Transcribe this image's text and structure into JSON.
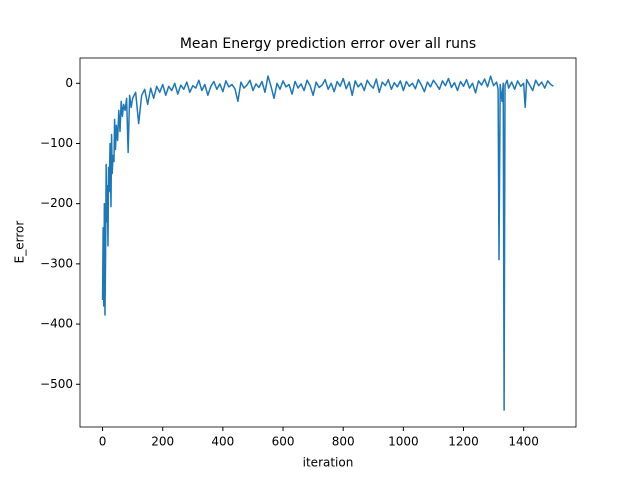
{
  "chart_data": {
    "type": "line",
    "title": "Mean Energy prediction error over all runs",
    "x_label": "iteration",
    "y_label": "E_error",
    "color": "#1f77b4",
    "x": [
      0,
      2,
      4,
      6,
      8,
      10,
      12,
      14,
      16,
      18,
      20,
      22,
      25,
      28,
      30,
      32,
      35,
      38,
      40,
      43,
      46,
      50,
      54,
      58,
      62,
      66,
      70,
      75,
      80,
      85,
      90,
      95,
      100,
      110,
      120,
      130,
      140,
      150,
      160,
      170,
      180,
      190,
      200,
      210,
      220,
      230,
      240,
      250,
      260,
      270,
      280,
      290,
      300,
      310,
      320,
      330,
      340,
      350,
      360,
      370,
      380,
      390,
      400,
      410,
      420,
      430,
      440,
      450,
      460,
      470,
      480,
      490,
      500,
      510,
      520,
      530,
      540,
      550,
      560,
      570,
      580,
      590,
      600,
      610,
      620,
      630,
      640,
      650,
      660,
      670,
      680,
      690,
      700,
      710,
      720,
      730,
      740,
      750,
      760,
      770,
      780,
      790,
      800,
      810,
      820,
      830,
      840,
      850,
      860,
      870,
      880,
      890,
      900,
      910,
      920,
      930,
      940,
      950,
      960,
      970,
      980,
      990,
      1000,
      1010,
      1020,
      1030,
      1040,
      1050,
      1060,
      1070,
      1080,
      1090,
      1100,
      1110,
      1120,
      1130,
      1140,
      1150,
      1160,
      1170,
      1180,
      1190,
      1200,
      1210,
      1220,
      1230,
      1240,
      1250,
      1260,
      1270,
      1280,
      1290,
      1300,
      1310,
      1315,
      1318,
      1322,
      1328,
      1332,
      1335,
      1338,
      1345,
      1350,
      1360,
      1370,
      1380,
      1390,
      1400,
      1405,
      1410,
      1420,
      1430,
      1440,
      1450,
      1460,
      1470,
      1480,
      1490,
      1499
    ],
    "values": [
      -360,
      -240,
      -370,
      -200,
      -385,
      -290,
      -135,
      -230,
      -170,
      -270,
      -140,
      -180,
      -100,
      -205,
      -85,
      -150,
      -120,
      -130,
      -60,
      -110,
      -70,
      -95,
      -45,
      -80,
      -30,
      -55,
      -35,
      -45,
      -25,
      -115,
      -20,
      -40,
      -25,
      -15,
      -67,
      -20,
      -10,
      -35,
      -8,
      -25,
      -5,
      -15,
      -2,
      -20,
      -5,
      -12,
      0,
      -18,
      -3,
      -10,
      2,
      -15,
      -4,
      -8,
      5,
      -12,
      -2,
      -20,
      -5,
      3,
      -10,
      -1,
      -14,
      4,
      -6,
      -2,
      -9,
      -30,
      2,
      -8,
      -3,
      5,
      -12,
      -1,
      -7,
      3,
      -15,
      12,
      -5,
      -25,
      0,
      -10,
      4,
      -6,
      -2,
      -18,
      3,
      -8,
      -1,
      -12,
      5,
      -4,
      -20,
      2,
      -7,
      -3,
      6,
      -10,
      0,
      -14,
      3,
      -5,
      8,
      -9,
      2,
      -20,
      4,
      -6,
      0,
      -12,
      5,
      -3,
      -8,
      7,
      -15,
      2,
      -4,
      6,
      -10,
      1,
      -6,
      4,
      -12,
      3,
      -5,
      0,
      -9,
      6,
      -3,
      -14,
      2,
      -6,
      5,
      -2,
      -10,
      4,
      -4,
      8,
      -7,
      1,
      -12,
      3,
      -5,
      6,
      -8,
      0,
      -16,
      4,
      -3,
      7,
      -6,
      12,
      -4,
      2,
      -10,
      -293,
      -2,
      -30,
      0,
      -543,
      -3,
      5,
      -8,
      2,
      -10,
      4,
      -5,
      0,
      -40,
      6,
      -3,
      -12,
      5,
      -4,
      2,
      -8,
      4,
      -2,
      -5
    ],
    "xlim": [
      -75,
      1574
    ],
    "ylim": [
      -571,
      42
    ],
    "xticks": [
      0,
      200,
      400,
      600,
      800,
      1000,
      1200,
      1400
    ],
    "yticks": [
      {
        "value": -500,
        "label": "−500"
      },
      {
        "value": -400,
        "label": "−400"
      },
      {
        "value": -300,
        "label": "−300"
      },
      {
        "value": -200,
        "label": "−200"
      },
      {
        "value": -100,
        "label": "−100"
      },
      0
    ]
  }
}
